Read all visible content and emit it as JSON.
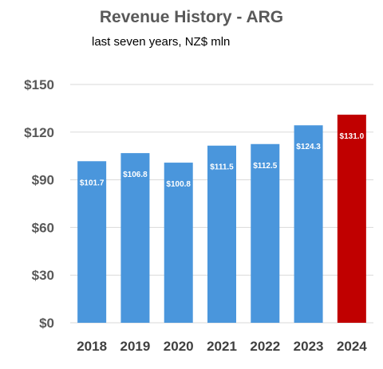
{
  "chart_data": {
    "type": "bar",
    "title": "Revenue History - ARG",
    "subtitle": "last seven years, NZ$ mln",
    "categories": [
      "2018",
      "2019",
      "2020",
      "2021",
      "2022",
      "2023",
      "2024"
    ],
    "values": [
      101.7,
      106.8,
      100.8,
      111.5,
      112.5,
      124.3,
      131.0
    ],
    "data_labels": [
      "$101.7",
      "$106.8",
      "$100.8",
      "$111.5",
      "$112.5",
      "$124.3",
      "$131.0"
    ],
    "yticks": [
      0,
      30,
      60,
      90,
      120,
      150
    ],
    "ytick_labels": [
      "$0",
      "$30",
      "$60",
      "$90",
      "$120",
      "$150"
    ],
    "ylim": [
      0,
      150
    ],
    "grid": true,
    "legend": false,
    "colors": {
      "bar": "#4A96DC",
      "highlight": "#C00000",
      "grid": "#D9D9D9"
    },
    "highlight_index": 6
  }
}
